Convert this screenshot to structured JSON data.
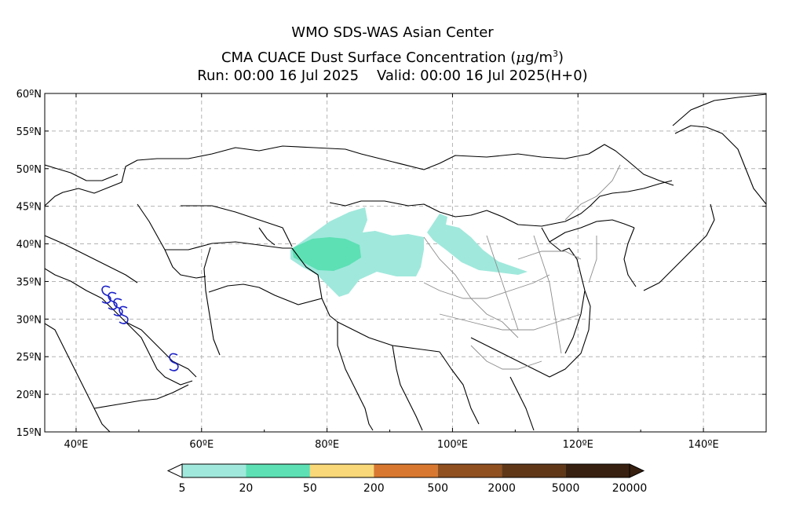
{
  "header": {
    "line1": "WMO SDS-WAS Asian Center",
    "line2_prefix": "CMA CUACE Dust Surface Concentration (",
    "line2_mu": "μ",
    "line2_unit": "g/m",
    "line2_exp": "3",
    "line2_suffix": ")",
    "line3": "Run: 00:00 16 Jul 2025    Valid: 00:00 16 Jul 2025(H+0)"
  },
  "map": {
    "lat_labels": [
      "60ºN",
      "55ºN",
      "50ºN",
      "45ºN",
      "40ºN",
      "35ºN",
      "30ºN",
      "25ºN",
      "20ºN",
      "15ºN"
    ],
    "lon_labels": [
      "40ºE",
      "60ºE",
      "80ºE",
      "100ºE",
      "120ºE",
      "140ºE"
    ],
    "lon_range": [
      35,
      150
    ],
    "lat_range": [
      15,
      60
    ],
    "grid": true
  },
  "colorbar": {
    "labels": [
      "5",
      "20",
      "50",
      "200",
      "500",
      "2000",
      "5000",
      "20000"
    ],
    "colors": [
      "#a0e8dc",
      "#5ce0b4",
      "#f8d878",
      "#d87830",
      "#905020",
      "#603818",
      "#382010"
    ]
  },
  "colors": {
    "dust_low": "#a0e8dc",
    "dust_mid": "#5ce0b4",
    "front_symbol": "#1c22c8"
  }
}
